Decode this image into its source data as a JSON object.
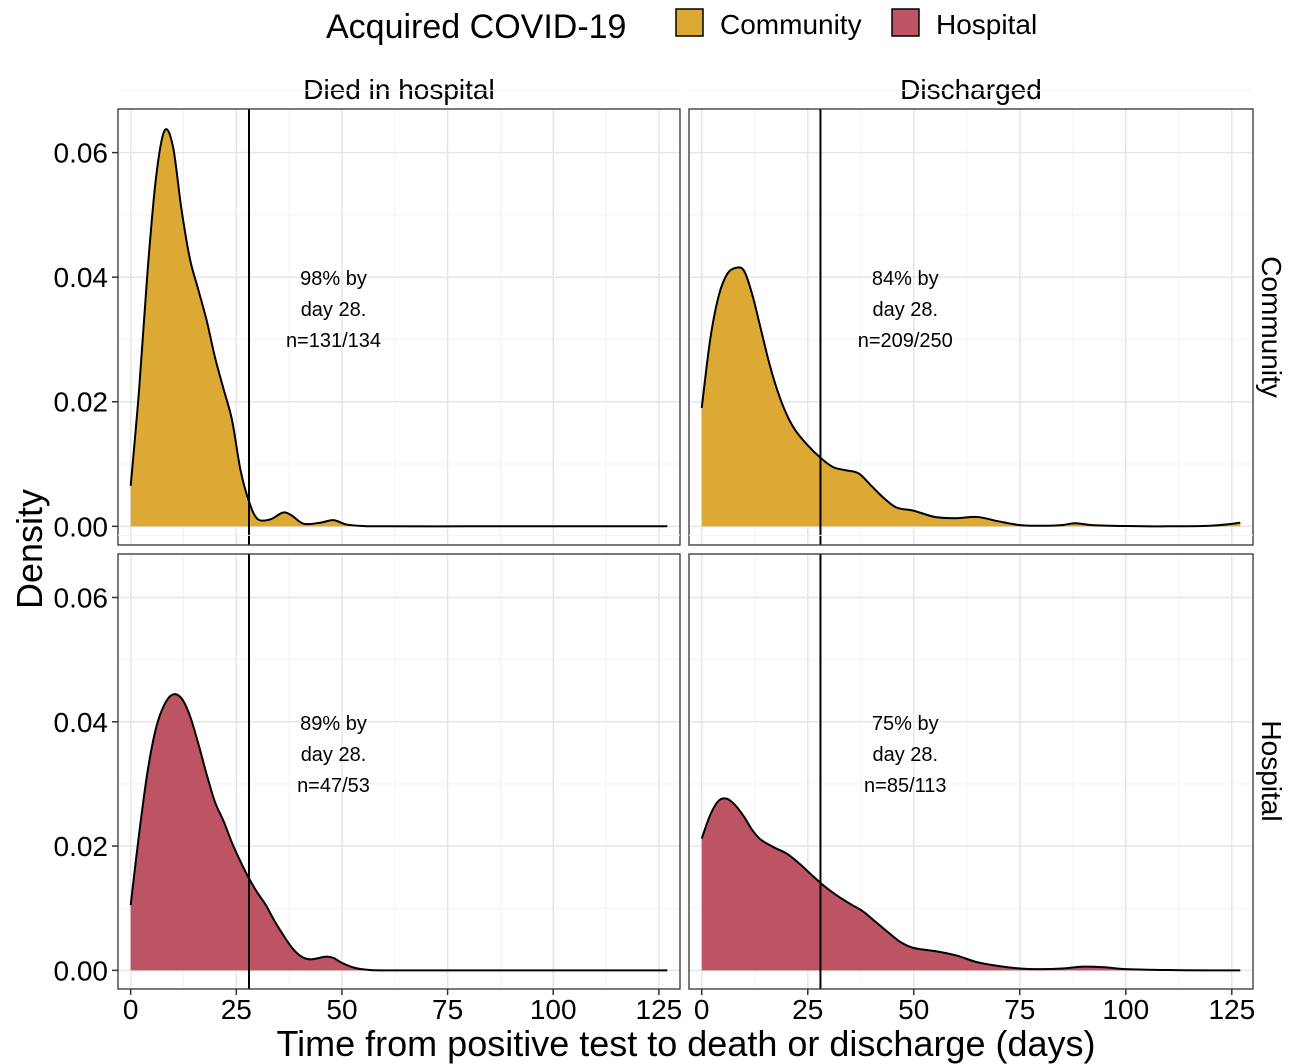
{
  "chart_data": {
    "type": "area",
    "legend": {
      "title": "Acquired COVID-19",
      "position": "top",
      "entries": [
        {
          "key": "community",
          "label": "Community",
          "color": "#DDA935"
        },
        {
          "key": "hospital",
          "label": "Hospital",
          "color": "#BD5463"
        }
      ]
    },
    "xlabel": "Time from positive test to death or discharge (days)",
    "ylabel": "Density",
    "xlim": [
      -3,
      130
    ],
    "ylim": [
      -0.003,
      0.067
    ],
    "x_ticks": [
      0,
      25,
      50,
      75,
      100,
      125
    ],
    "x_tick_labels": [
      "0",
      "25",
      "50",
      "75",
      "100",
      "125"
    ],
    "y_ticks": [
      0,
      0.02,
      0.04,
      0.06
    ],
    "y_tick_labels": [
      "0.00",
      "0.02",
      "0.04",
      "0.06"
    ],
    "vline_x": 28,
    "grid": true,
    "col_strips": [
      "Died in hospital",
      "Discharged"
    ],
    "row_strips": [
      "Community",
      "Hospital"
    ],
    "panels": [
      {
        "col": 0,
        "row": 0,
        "fill": "community",
        "annotation": [
          "98% by",
          "day 28.",
          "n=131/134"
        ],
        "x": [
          0,
          2,
          4,
          6,
          8,
          10,
          12,
          14,
          16,
          18,
          20,
          22,
          24,
          26,
          28,
          30,
          33,
          36,
          38,
          41,
          45,
          48,
          51,
          55,
          60,
          80,
          100,
          127
        ],
        "y": [
          0.0065,
          0.022,
          0.041,
          0.056,
          0.0635,
          0.061,
          0.051,
          0.043,
          0.038,
          0.033,
          0.027,
          0.022,
          0.017,
          0.009,
          0.004,
          0.0012,
          0.0011,
          0.0022,
          0.0018,
          0.0004,
          0.0006,
          0.001,
          0.0003,
          5e-05,
          0,
          0,
          0,
          0
        ]
      },
      {
        "col": 1,
        "row": 0,
        "fill": "community",
        "annotation": [
          "84% by",
          "day 28.",
          "n=209/250"
        ],
        "x": [
          0,
          2,
          4,
          6,
          8,
          10,
          12,
          14,
          16,
          18,
          20,
          22,
          25,
          28,
          31,
          34,
          37,
          40,
          43,
          46,
          50,
          55,
          60,
          65,
          70,
          75,
          80,
          85,
          88,
          92,
          100,
          110,
          120,
          125,
          127
        ],
        "y": [
          0.019,
          0.03,
          0.037,
          0.0405,
          0.0415,
          0.041,
          0.037,
          0.0315,
          0.026,
          0.0215,
          0.018,
          0.0155,
          0.013,
          0.011,
          0.0095,
          0.009,
          0.0085,
          0.0065,
          0.0045,
          0.003,
          0.0025,
          0.0015,
          0.0013,
          0.0015,
          0.0008,
          0.0002,
          0.0001,
          0.0002,
          0.0005,
          0.0002,
          5e-05,
          0,
          0.0001,
          0.0004,
          0.0006
        ]
      },
      {
        "col": 0,
        "row": 1,
        "fill": "hospital",
        "annotation": [
          "89% by",
          "day 28.",
          "n=47/53"
        ],
        "x": [
          0,
          2,
          4,
          6,
          8,
          10,
          12,
          14,
          16,
          18,
          20,
          22,
          24,
          26,
          28,
          30,
          32,
          34,
          36,
          38,
          40,
          42,
          44,
          46,
          48,
          50,
          53,
          56,
          60,
          80,
          100,
          127
        ],
        "y": [
          0.0105,
          0.022,
          0.032,
          0.039,
          0.0428,
          0.0444,
          0.0438,
          0.041,
          0.0365,
          0.0315,
          0.027,
          0.024,
          0.0205,
          0.0175,
          0.0148,
          0.0125,
          0.0105,
          0.008,
          0.0058,
          0.0038,
          0.0024,
          0.0018,
          0.0019,
          0.0022,
          0.002,
          0.0012,
          0.0004,
          0.0001,
          0,
          0,
          0,
          0
        ]
      },
      {
        "col": 1,
        "row": 1,
        "fill": "hospital",
        "annotation": [
          "75% by",
          "day 28.",
          "n=85/113"
        ],
        "x": [
          0,
          2,
          4,
          6,
          8,
          10,
          12,
          14,
          17,
          20,
          23,
          26,
          29,
          32,
          35,
          38,
          41,
          44,
          47,
          50,
          55,
          60,
          65,
          70,
          75,
          80,
          85,
          90,
          95,
          100,
          110,
          120,
          127
        ],
        "y": [
          0.0212,
          0.025,
          0.0273,
          0.0276,
          0.0265,
          0.0247,
          0.0225,
          0.021,
          0.0198,
          0.0188,
          0.0172,
          0.0153,
          0.0135,
          0.012,
          0.0107,
          0.0095,
          0.0078,
          0.0061,
          0.0045,
          0.0036,
          0.0031,
          0.0024,
          0.0013,
          0.0007,
          0.0003,
          0.0002,
          0.0003,
          0.0006,
          0.0005,
          0.0002,
          5e-05,
          0,
          0
        ]
      }
    ]
  }
}
